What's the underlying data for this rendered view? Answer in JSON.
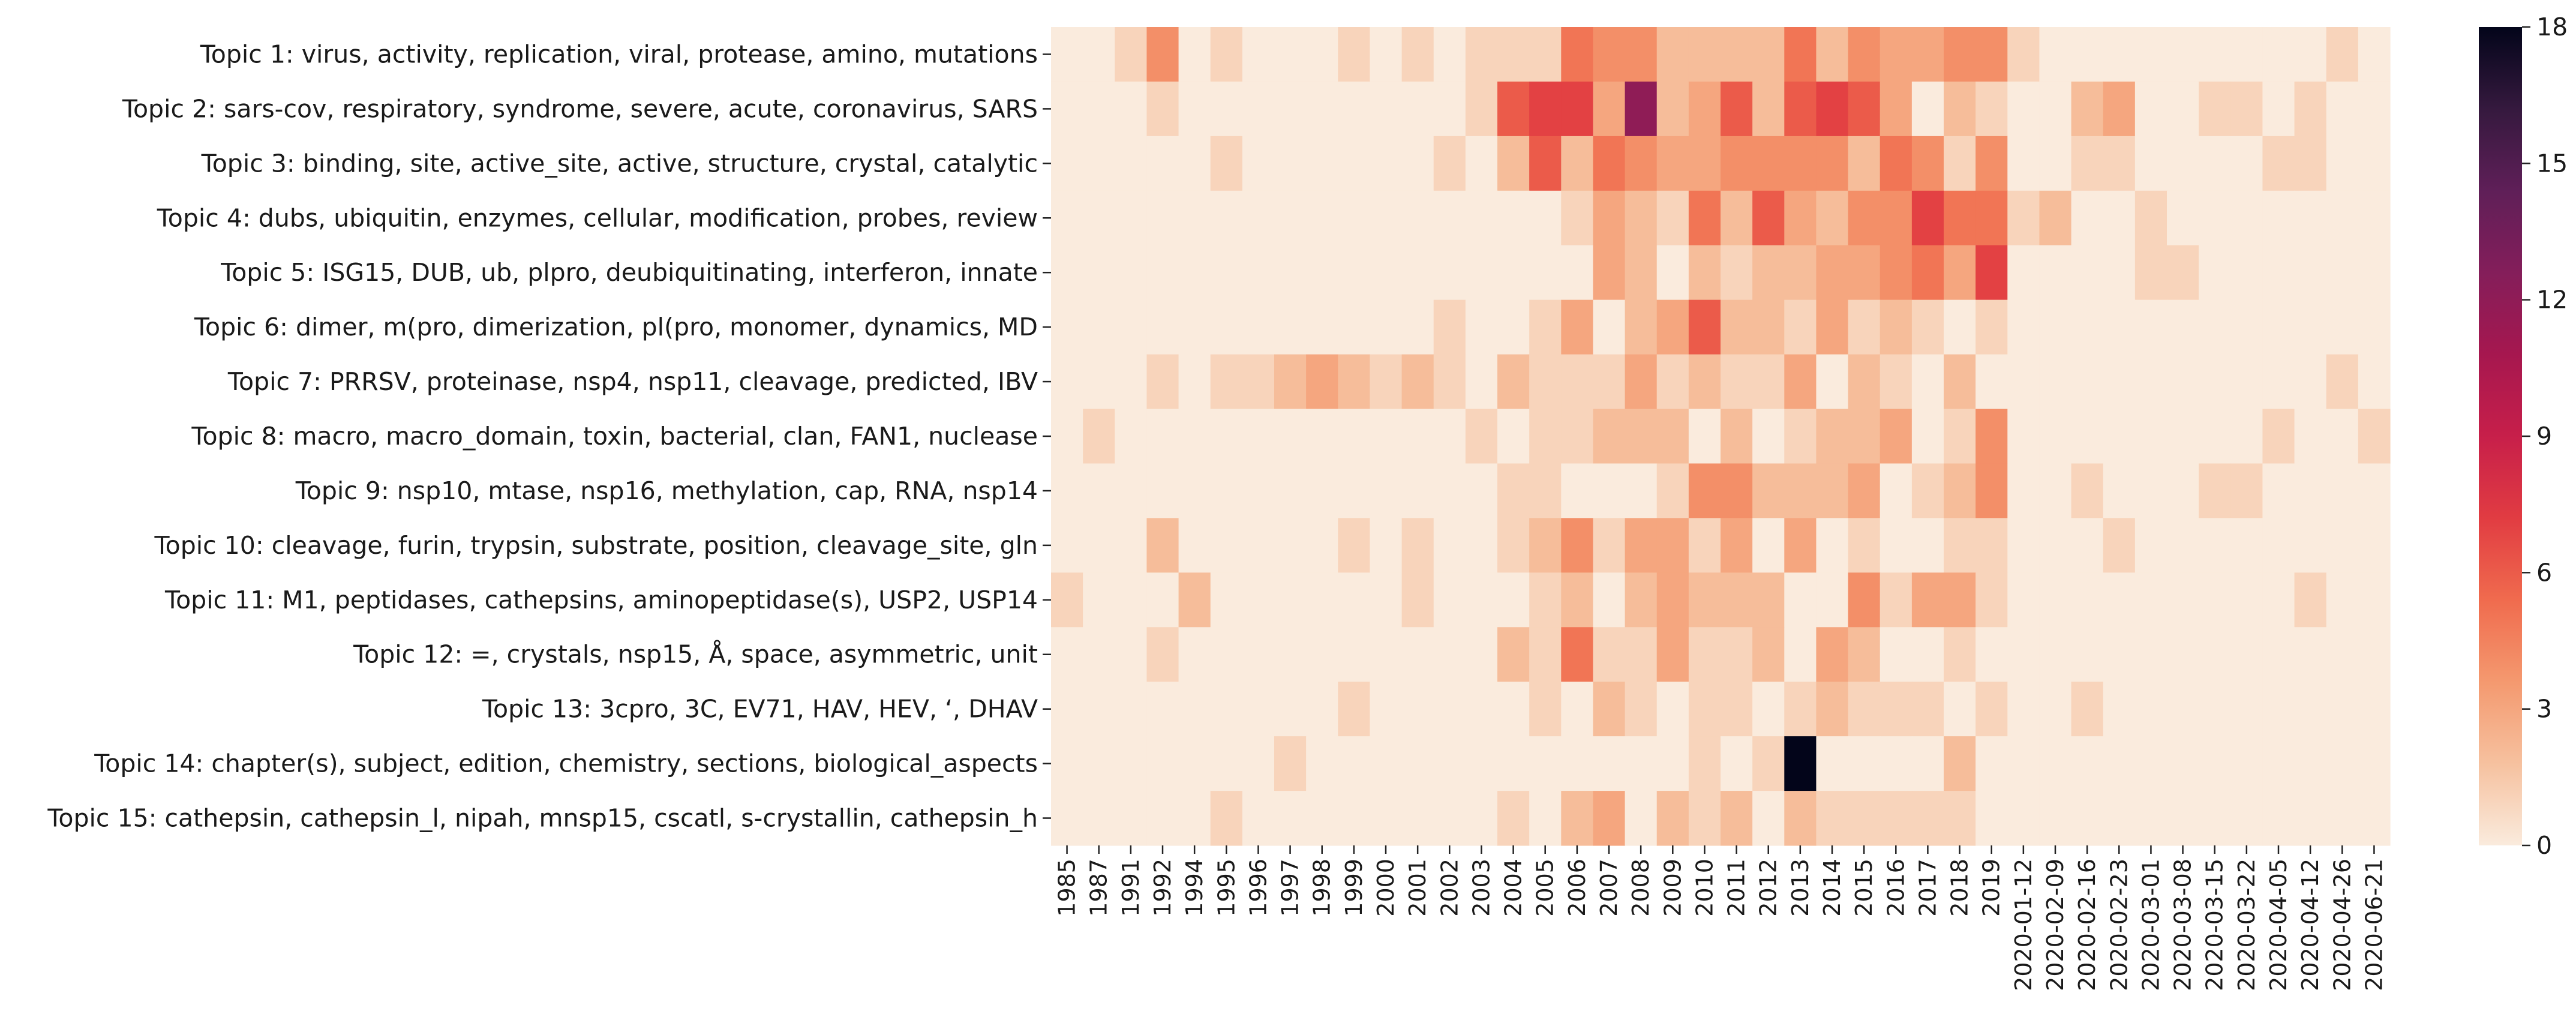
{
  "chart_data": {
    "type": "heatmap",
    "title": "",
    "xlabel": "",
    "ylabel": "",
    "rows": [
      "Topic 1: virus, activity, replication, viral, protease, amino, mutations",
      "Topic 2: sars-cov, respiratory, syndrome, severe, acute, coronavirus, SARS",
      "Topic 3: binding, site, active_site, active, structure, crystal, catalytic",
      "Topic 4: dubs, ubiquitin, enzymes, cellular, modification, probes, review",
      "Topic 5: ISG15, DUB, ub, plpro, deubiquitinating, interferon, innate",
      "Topic 6: dimer, m(pro, dimerization, pl(pro, monomer, dynamics, MD",
      "Topic 7: PRRSV, proteinase, nsp4, nsp11, cleavage, predicted, IBV",
      "Topic 8: macro, macro_domain, toxin, bacterial, clan, FAN1, nuclease",
      "Topic 9: nsp10, mtase, nsp16, methylation, cap, RNA, nsp14",
      "Topic 10: cleavage, furin, trypsin, substrate, position, cleavage_site, gln",
      "Topic 11: M1, peptidases, cathepsins, aminopeptidase(s), USP2, USP14",
      "Topic 12: =, crystals, nsp15, Å, space, asymmetric, unit",
      "Topic 13: 3cpro, 3C, EV71, HAV, HEV, ‘, DHAV",
      "Topic 14: chapter(s), subject, edition, chemistry, sections, biological_aspects",
      "Topic 15: cathepsin, cathepsin_l, nipah, mnsp15, cscatl, s-crystallin, cathepsin_h"
    ],
    "columns": [
      "1985",
      "1987",
      "1991",
      "1992",
      "1994",
      "1995",
      "1996",
      "1997",
      "1998",
      "1999",
      "2000",
      "2001",
      "2002",
      "2003",
      "2004",
      "2005",
      "2006",
      "2007",
      "2008",
      "2009",
      "2010",
      "2011",
      "2012",
      "2013",
      "2014",
      "2015",
      "2016",
      "2017",
      "2018",
      "2019",
      "2020-01-12",
      "2020-02-09",
      "2020-02-16",
      "2020-02-23",
      "2020-03-01",
      "2020-03-08",
      "2020-03-15",
      "2020-03-22",
      "2020-04-05",
      "2020-04-12",
      "2020-04-26",
      "2020-06-21"
    ],
    "visible_column_labels": [
      "1985",
      "1987",
      "1991",
      "1992",
      "1994",
      "1995",
      "1996",
      "1997",
      "1998",
      "1999",
      "2000",
      "2001",
      "2002",
      "2003",
      "2004",
      "2005",
      "2006",
      "2007",
      "2008",
      "2009",
      "2010",
      "2011",
      "2012",
      "2013",
      "2014",
      "2015",
      "2016",
      "2017",
      "2018",
      "2019",
      "2020-01-12",
      "2020-02-09",
      "2020-02-16",
      "2020-02-23",
      "2020-03-01",
      "2020-03-08",
      "2020-03-15",
      "2020-03-22",
      "2020-04-05",
      "2020-04-12",
      "2020-04-26",
      "2020-06-21"
    ],
    "values": [
      [
        0,
        0,
        1,
        4,
        0,
        1,
        0,
        0,
        0,
        1,
        0,
        1,
        0,
        1,
        1,
        1,
        5,
        4,
        4,
        2,
        2,
        2,
        2,
        5,
        2,
        4,
        3,
        3,
        4,
        4,
        1,
        0,
        0,
        0,
        0,
        0,
        0,
        0,
        0,
        0,
        1,
        0
      ],
      [
        0,
        0,
        0,
        1,
        0,
        0,
        0,
        0,
        0,
        0,
        0,
        0,
        0,
        1,
        6,
        7,
        7,
        3,
        12,
        2,
        3,
        6,
        2,
        6,
        7,
        6,
        3,
        0,
        2,
        1,
        0,
        0,
        2,
        3,
        0,
        0,
        1,
        1,
        0,
        1,
        0,
        0
      ],
      [
        0,
        0,
        0,
        0,
        0,
        1,
        0,
        0,
        0,
        0,
        0,
        0,
        1,
        0,
        2,
        6,
        2,
        5,
        4,
        3,
        3,
        4,
        4,
        4,
        4,
        2,
        5,
        4,
        1,
        4,
        0,
        0,
        1,
        1,
        0,
        0,
        0,
        0,
        1,
        1,
        0,
        0
      ],
      [
        0,
        0,
        0,
        0,
        0,
        0,
        0,
        0,
        0,
        0,
        0,
        0,
        0,
        0,
        0,
        0,
        1,
        3,
        2,
        1,
        5,
        2,
        6,
        3,
        2,
        4,
        4,
        7,
        5,
        5,
        1,
        2,
        0,
        0,
        1,
        0,
        0,
        0,
        0,
        0,
        0,
        0
      ],
      [
        0,
        0,
        0,
        0,
        0,
        0,
        0,
        0,
        0,
        0,
        0,
        0,
        0,
        0,
        0,
        0,
        0,
        3,
        2,
        0,
        2,
        1,
        2,
        2,
        3,
        3,
        4,
        5,
        3,
        7,
        0,
        0,
        0,
        0,
        1,
        1,
        0,
        0,
        0,
        0,
        0,
        0
      ],
      [
        0,
        0,
        0,
        0,
        0,
        0,
        0,
        0,
        0,
        0,
        0,
        0,
        1,
        0,
        0,
        1,
        3,
        0,
        2,
        3,
        6,
        2,
        2,
        1,
        3,
        1,
        2,
        1,
        0,
        1,
        0,
        0,
        0,
        0,
        0,
        0,
        0,
        0,
        0,
        0,
        0,
        0
      ],
      [
        0,
        0,
        0,
        1,
        0,
        1,
        1,
        2,
        3,
        2,
        1,
        2,
        1,
        0,
        2,
        1,
        1,
        1,
        3,
        1,
        2,
        1,
        1,
        3,
        0,
        2,
        1,
        0,
        2,
        0,
        0,
        0,
        0,
        0,
        0,
        0,
        0,
        0,
        0,
        0,
        1,
        0
      ],
      [
        0,
        1,
        0,
        0,
        0,
        0,
        0,
        0,
        0,
        0,
        0,
        0,
        0,
        1,
        0,
        1,
        1,
        2,
        2,
        2,
        0,
        2,
        0,
        1,
        2,
        2,
        3,
        0,
        1,
        4,
        0,
        0,
        0,
        0,
        0,
        0,
        0,
        0,
        1,
        0,
        0,
        1
      ],
      [
        0,
        0,
        0,
        0,
        0,
        0,
        0,
        0,
        0,
        0,
        0,
        0,
        0,
        0,
        1,
        1,
        0,
        0,
        0,
        1,
        4,
        4,
        2,
        2,
        2,
        3,
        0,
        1,
        2,
        4,
        0,
        0,
        1,
        0,
        0,
        0,
        1,
        1,
        0,
        0,
        0,
        0
      ],
      [
        0,
        0,
        0,
        2,
        0,
        0,
        0,
        0,
        0,
        1,
        0,
        1,
        0,
        0,
        1,
        2,
        4,
        1,
        3,
        3,
        1,
        3,
        0,
        3,
        0,
        1,
        0,
        0,
        1,
        1,
        0,
        0,
        0,
        1,
        0,
        0,
        0,
        0,
        0,
        0,
        0,
        0
      ],
      [
        1,
        0,
        0,
        0,
        2,
        0,
        0,
        0,
        0,
        0,
        0,
        1,
        0,
        0,
        0,
        1,
        2,
        0,
        2,
        3,
        2,
        2,
        2,
        0,
        0,
        4,
        1,
        3,
        3,
        1,
        0,
        0,
        0,
        0,
        0,
        0,
        0,
        0,
        0,
        1,
        0,
        0
      ],
      [
        0,
        0,
        0,
        1,
        0,
        0,
        0,
        0,
        0,
        0,
        0,
        0,
        0,
        0,
        2,
        1,
        5,
        1,
        1,
        3,
        1,
        1,
        2,
        0,
        3,
        2,
        0,
        0,
        1,
        0,
        0,
        0,
        0,
        0,
        0,
        0,
        0,
        0,
        0,
        0,
        0,
        0
      ],
      [
        0,
        0,
        0,
        0,
        0,
        0,
        0,
        0,
        0,
        1,
        0,
        0,
        0,
        0,
        0,
        1,
        0,
        2,
        1,
        0,
        1,
        1,
        0,
        1,
        2,
        1,
        1,
        1,
        0,
        1,
        0,
        0,
        1,
        0,
        0,
        0,
        0,
        0,
        0,
        0,
        0,
        0
      ],
      [
        0,
        0,
        0,
        0,
        0,
        0,
        0,
        1,
        0,
        0,
        0,
        0,
        0,
        0,
        0,
        0,
        0,
        0,
        0,
        0,
        1,
        0,
        1,
        18,
        0,
        0,
        0,
        0,
        2,
        0,
        0,
        0,
        0,
        0,
        0,
        0,
        0,
        0,
        0,
        0,
        0,
        0
      ],
      [
        0,
        0,
        0,
        0,
        0,
        1,
        0,
        0,
        0,
        0,
        0,
        0,
        0,
        0,
        1,
        0,
        2,
        3,
        0,
        2,
        1,
        2,
        0,
        2,
        1,
        1,
        1,
        1,
        1,
        0,
        0,
        0,
        0,
        0,
        0,
        0,
        0,
        0,
        0,
        0,
        0,
        0
      ]
    ],
    "colorbar": {
      "range": [
        0,
        18
      ],
      "ticks": [
        0,
        3,
        6,
        9,
        12,
        15,
        18
      ],
      "colormap": "rocket_r",
      "low_color": "#faebdd",
      "high_color": "#03051a"
    }
  }
}
